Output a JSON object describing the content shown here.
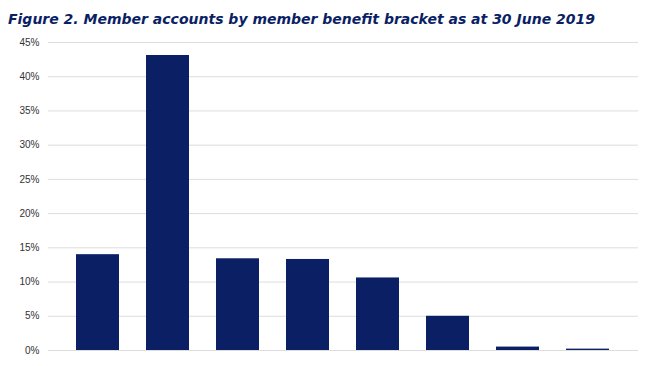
{
  "chart_data": {
    "type": "bar",
    "title": "Figure 2.  Member accounts by member benefit bracket as at 30 June 2019",
    "categories": [
      null,
      null,
      null,
      null,
      null,
      null,
      null,
      null
    ],
    "values": [
      14,
      43.1,
      13.4,
      13.3,
      10.6,
      5,
      0.5,
      0.2
    ],
    "color": "#0b1f65",
    "ylim": [
      0,
      45
    ],
    "yticks": [
      {
        "value": 0,
        "label": "0%"
      },
      {
        "value": 5,
        "label": "5%"
      },
      {
        "value": 10,
        "label": "10%"
      },
      {
        "value": 15,
        "label": "15%"
      },
      {
        "value": 20,
        "label": "20%"
      },
      {
        "value": 25,
        "label": "25%"
      },
      {
        "value": 30,
        "label": "30%"
      },
      {
        "value": 35,
        "label": "35%"
      },
      {
        "value": 40,
        "label": "40%"
      },
      {
        "value": 45,
        "label": "45%"
      }
    ],
    "grid": true,
    "tick_labels": "y"
  }
}
